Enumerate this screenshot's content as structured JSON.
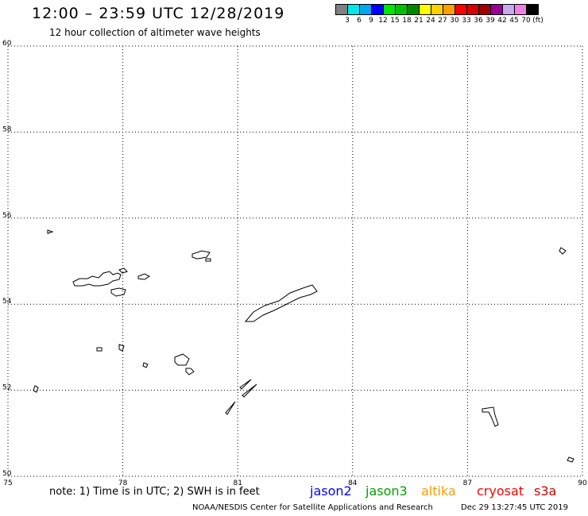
{
  "header": {
    "title": "12:00 – 23:59 UTC 12/28/2019",
    "subtitle": "12 hour collection of altimeter wave heights"
  },
  "colorbar": {
    "colors": [
      "#808080",
      "#00e8e8",
      "#00a8f0",
      "#0000ff",
      "#00e800",
      "#00c000",
      "#008800",
      "#ffff00",
      "#ffd000",
      "#ffa000",
      "#ff0000",
      "#d80000",
      "#a00000",
      "#980098",
      "#c8a8f0",
      "#f080e0",
      "#000000"
    ],
    "labels": [
      "3",
      "6",
      "9",
      "12",
      "15",
      "18",
      "21",
      "24",
      "27",
      "30",
      "33",
      "36",
      "39",
      "42",
      "45",
      "70",
      "(ft)"
    ]
  },
  "chart_data": {
    "type": "map",
    "xlim": [
      75,
      90
    ],
    "ylim": [
      50,
      60
    ],
    "x_ticks": [
      "75",
      "78",
      "81",
      "84",
      "87",
      "90"
    ],
    "y_ticks": [
      "50",
      "52",
      "54",
      "56",
      "58",
      "60"
    ],
    "grid": true,
    "series": []
  },
  "footer": {
    "note": "note: 1) Time is in UTC; 2) SWH is in feet",
    "satellites": [
      {
        "name": "jason2",
        "color": "#0000ff"
      },
      {
        "name": "jason3",
        "color": "#00a000"
      },
      {
        "name": "altika",
        "color": "#ff9900"
      },
      {
        "name": "cryosat",
        "color": "#ff0000"
      },
      {
        "name": "s3a",
        "color": "#cc0000"
      }
    ],
    "credit": "NOAA/NESDIS Center for Satellite Applications and Research",
    "timestamp": "Dec 29 13:27:45 UTC 2019"
  }
}
